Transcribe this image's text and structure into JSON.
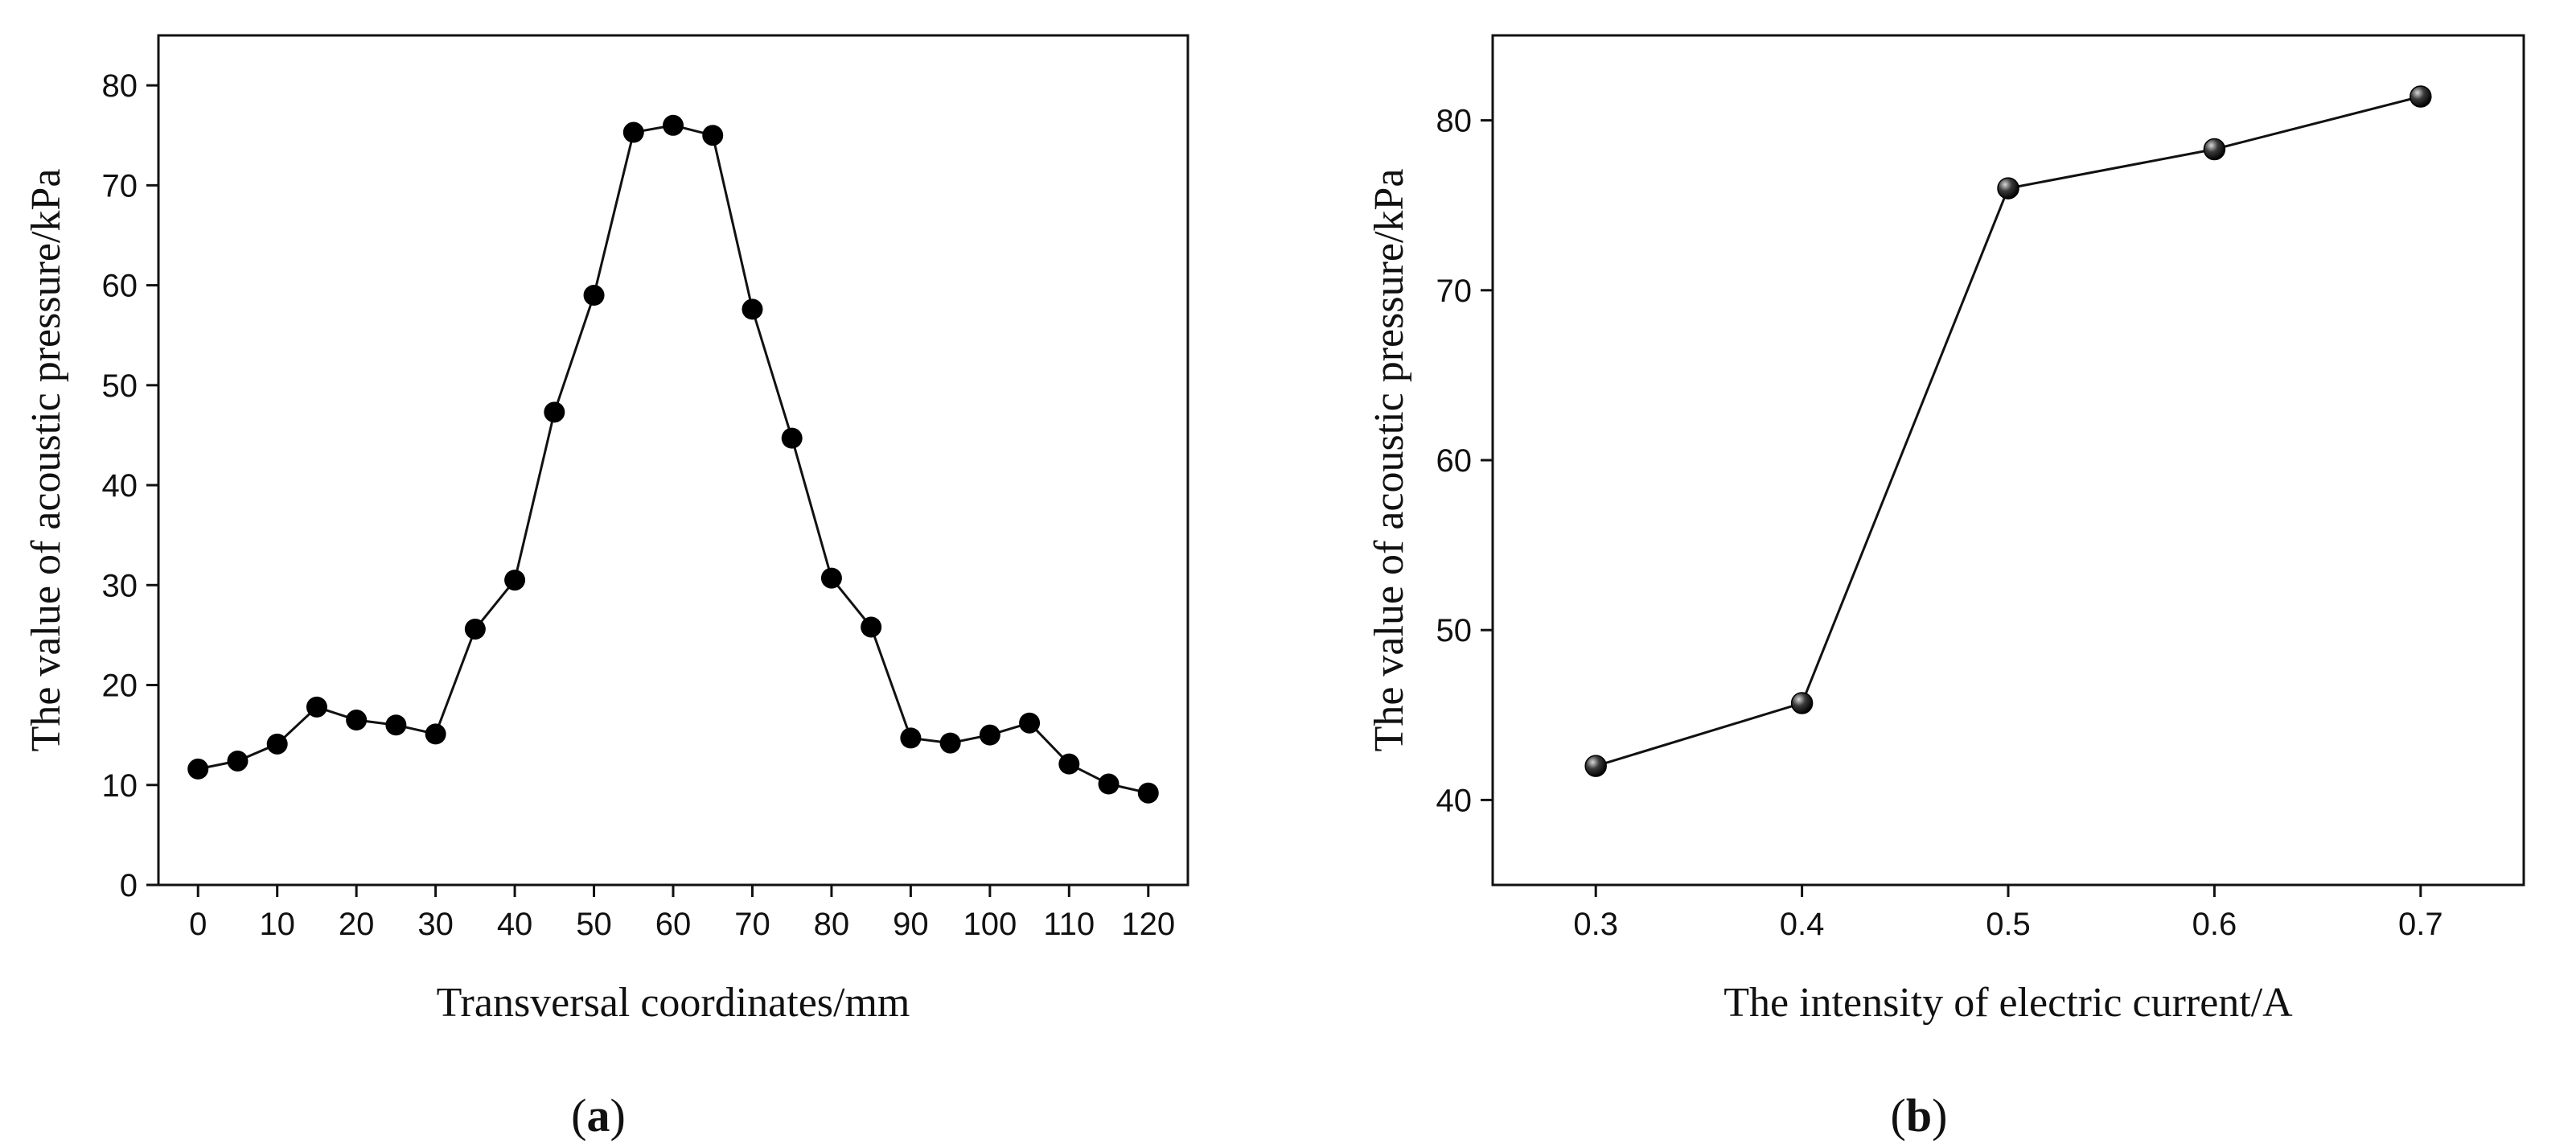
{
  "chart_data": [
    {
      "id": "a",
      "type": "line",
      "marker": "circle",
      "panel_label": "a",
      "title": "",
      "xlabel": "Transversal coordinates/mm",
      "ylabel": "The value of acoustic pressure/kPa",
      "xlim": [
        -5,
        125
      ],
      "ylim": [
        0,
        85
      ],
      "xticks": [
        0,
        10,
        20,
        30,
        40,
        50,
        60,
        70,
        80,
        90,
        100,
        110,
        120
      ],
      "yticks": [
        0,
        10,
        20,
        30,
        40,
        50,
        60,
        70,
        80
      ],
      "x": [
        0,
        5,
        10,
        15,
        20,
        25,
        30,
        35,
        40,
        45,
        50,
        55,
        60,
        65,
        70,
        75,
        80,
        85,
        90,
        95,
        100,
        105,
        110,
        115,
        120
      ],
      "y": [
        11.6,
        12.4,
        14.1,
        17.8,
        16.5,
        16.0,
        15.1,
        25.6,
        30.5,
        47.3,
        59.0,
        75.3,
        76.0,
        75.0,
        57.6,
        44.7,
        30.7,
        25.8,
        14.7,
        14.2,
        15.0,
        16.2,
        12.1,
        10.1,
        9.2
      ],
      "colors": {
        "line": "#111111",
        "marker": "#000000",
        "axis": "#111111"
      }
    },
    {
      "id": "b",
      "type": "line",
      "marker": "sphere",
      "panel_label": "b",
      "title": "",
      "xlabel": "The intensity of electric current/A",
      "ylabel": "The value of acoustic pressure/kPa",
      "xlim": [
        0.25,
        0.75
      ],
      "ylim": [
        35,
        85
      ],
      "xticks": [
        0.3,
        0.4,
        0.5,
        0.6,
        0.7
      ],
      "xtick_labels": [
        "0.3",
        "0.4",
        "0.5",
        "0.6",
        "0.7"
      ],
      "yticks": [
        40,
        50,
        60,
        70,
        80
      ],
      "x": [
        0.3,
        0.4,
        0.5,
        0.6,
        0.7
      ],
      "y": [
        42.0,
        45.7,
        76.0,
        78.3,
        81.4
      ],
      "colors": {
        "line": "#111111",
        "marker": "#000000",
        "highlight": "#d8d8d8",
        "axis": "#111111"
      }
    }
  ]
}
